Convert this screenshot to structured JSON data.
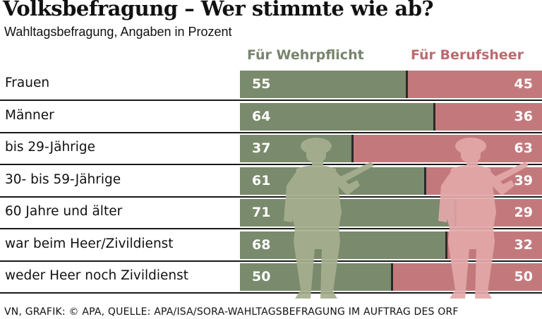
{
  "title": "Volksbefragung – Wer stimmte wie ab?",
  "subtitle": "Wahltagsbefragung, Angaben in Prozent",
  "source": "VN, GRAFIK: © APA, QUELLE: APA/ISA/SORA-WAHLTAGSBEFRAGUNG IM AUFTRAG DES ORF",
  "colors": {
    "wehrpflicht": "#7a8a6c",
    "berufsheer": "#c3797c",
    "wehrpflicht_text": "#77856c",
    "berufsheer_text": "#bc6a6f",
    "soldier_wehrpflicht": "#a6ae8e",
    "soldier_berufsheer": "#e3a8a9"
  },
  "icons": [
    "soldier-icon",
    "soldier-icon"
  ],
  "chart_data": {
    "type": "bar",
    "stacked": true,
    "orientation": "horizontal",
    "categories": [
      "Frauen",
      "Männer",
      "bis 29-Jährige",
      "30- bis 59-Jährige",
      "60 Jahre und älter",
      "war beim Heer/Zivildienst",
      "weder Heer noch Zivildienst"
    ],
    "series": [
      {
        "name": "Für Wehrpflicht",
        "values": [
          55,
          64,
          37,
          61,
          71,
          68,
          50
        ]
      },
      {
        "name": "Für Berufsheer",
        "values": [
          45,
          36,
          63,
          39,
          29,
          32,
          50
        ]
      }
    ],
    "xlim": [
      0,
      100
    ],
    "title": "Volksbefragung – Wer stimmte wie ab?",
    "subtitle": "Wahltagsbefragung, Angaben in Prozent",
    "legend": "top",
    "grid": false
  }
}
